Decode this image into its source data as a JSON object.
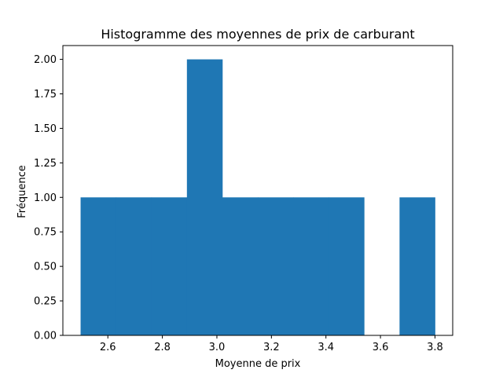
{
  "chart_data": {
    "type": "bar",
    "title": "Histogramme des moyennes de prix de carburant",
    "xlabel": "Moyenne de prix",
    "ylabel": "Fréquence",
    "bin_edges": [
      2.5,
      2.63,
      2.76,
      2.89,
      3.02,
      3.15,
      3.28,
      3.41,
      3.54,
      3.67,
      3.8
    ],
    "values": [
      1,
      1,
      1,
      2,
      1,
      1,
      1,
      1,
      0,
      1
    ],
    "xlim": [
      2.435,
      3.865
    ],
    "ylim": [
      0,
      2.1
    ],
    "xticks": [
      2.6,
      2.8,
      3.0,
      3.2,
      3.4,
      3.6,
      3.8
    ],
    "xtick_labels": [
      "2.6",
      "2.8",
      "3.0",
      "3.2",
      "3.4",
      "3.6",
      "3.8"
    ],
    "yticks": [
      0,
      0.25,
      0.5,
      0.75,
      1.0,
      1.25,
      1.5,
      1.75,
      2.0
    ],
    "ytick_labels": [
      "0.00",
      "0.25",
      "0.50",
      "0.75",
      "1.00",
      "1.25",
      "1.50",
      "1.75",
      "2.00"
    ],
    "bar_color": "#1f77b4",
    "grid": false,
    "legend": "none"
  }
}
